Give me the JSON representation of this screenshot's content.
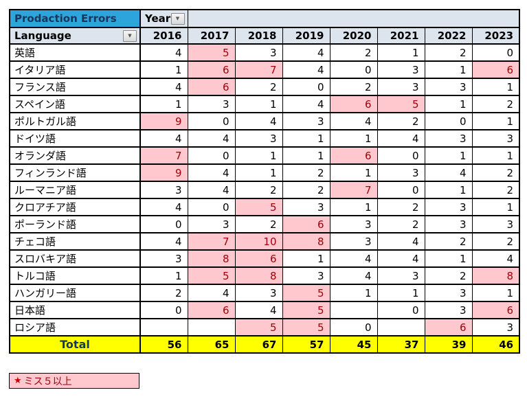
{
  "header": {
    "title": "Prodaction Errors",
    "year_label": "Year",
    "language_label": "Language",
    "years": [
      "2016",
      "2017",
      "2018",
      "2019",
      "2020",
      "2021",
      "2022",
      "2023"
    ]
  },
  "rows": [
    {
      "language": "英語",
      "values": [
        "4",
        "5",
        "3",
        "4",
        "2",
        "1",
        "2",
        "0"
      ]
    },
    {
      "language": "イタリア語",
      "values": [
        "1",
        "6",
        "7",
        "4",
        "0",
        "3",
        "1",
        "6"
      ]
    },
    {
      "language": "フランス語",
      "values": [
        "4",
        "6",
        "2",
        "0",
        "2",
        "3",
        "3",
        "1"
      ]
    },
    {
      "language": "スペイン語",
      "values": [
        "1",
        "3",
        "1",
        "4",
        "6",
        "5",
        "1",
        "2"
      ]
    },
    {
      "language": "ポルトガル語",
      "values": [
        "9",
        "0",
        "4",
        "3",
        "4",
        "2",
        "0",
        "1"
      ]
    },
    {
      "language": "ドイツ語",
      "values": [
        "4",
        "4",
        "3",
        "1",
        "1",
        "4",
        "3",
        "3"
      ]
    },
    {
      "language": "オランダ語",
      "values": [
        "7",
        "0",
        "1",
        "1",
        "6",
        "0",
        "1",
        "1"
      ]
    },
    {
      "language": "フィンランド語",
      "values": [
        "9",
        "4",
        "1",
        "2",
        "1",
        "3",
        "4",
        "2"
      ]
    },
    {
      "language": "ルーマニア語",
      "values": [
        "3",
        "4",
        "2",
        "2",
        "7",
        "0",
        "1",
        "2"
      ]
    },
    {
      "language": "クロアチア語",
      "values": [
        "4",
        "0",
        "5",
        "3",
        "1",
        "2",
        "3",
        "1"
      ]
    },
    {
      "language": "ポーランド語",
      "values": [
        "0",
        "3",
        "2",
        "6",
        "3",
        "2",
        "3",
        "3"
      ]
    },
    {
      "language": "チェコ語",
      "values": [
        "4",
        "7",
        "10",
        "8",
        "3",
        "4",
        "2",
        "2"
      ]
    },
    {
      "language": "スロバキア語",
      "values": [
        "3",
        "8",
        "6",
        "1",
        "4",
        "4",
        "1",
        "4"
      ]
    },
    {
      "language": "トルコ語",
      "values": [
        "1",
        "5",
        "8",
        "3",
        "4",
        "3",
        "2",
        "8"
      ]
    },
    {
      "language": "ハンガリー語",
      "values": [
        "2",
        "4",
        "3",
        "5",
        "1",
        "1",
        "3",
        "1"
      ]
    },
    {
      "language": "日本語",
      "values": [
        "0",
        "6",
        "4",
        "5",
        "",
        "0",
        "3",
        "6"
      ]
    },
    {
      "language": "ロシア語",
      "values": [
        "",
        "",
        "5",
        "5",
        "0",
        "",
        "6",
        "3"
      ]
    }
  ],
  "total": {
    "label": "Total",
    "values": [
      "56",
      "65",
      "67",
      "57",
      "45",
      "37",
      "39",
      "46"
    ]
  },
  "legend": {
    "star": "★",
    "label": "ミス５以上",
    "threshold": 5
  },
  "icons": {
    "dropdown_arrow": "▼"
  },
  "colors": {
    "title_bg": "#2EA4DC",
    "title_text": "#17375D",
    "header_bg": "#DCE4EE",
    "highlight_bg": "#FFC7CE",
    "highlight_text": "#9C0006",
    "total_bg": "#FFFF00",
    "legend_star": "#C00000",
    "border": "#000000"
  }
}
